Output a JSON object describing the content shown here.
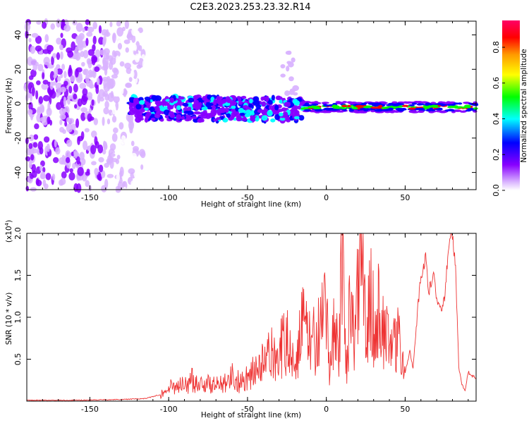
{
  "title": "C2E3.2023.253.23.32.R14",
  "colors": {
    "snr_line": "#ee3333",
    "axis": "#000000",
    "spectrum_scale": [
      "#ffffff",
      "#d9b3ff",
      "#8800ff",
      "#0000ff",
      "#00ffff",
      "#00ff00",
      "#ffff00",
      "#ff9900",
      "#ff0000",
      "#ff0066"
    ]
  },
  "chart_data": [
    {
      "type": "heatmap",
      "title": "C2E3.2023.253.23.32.R14",
      "xlabel": "Height of straight line (km)",
      "ylabel": "Frequency (Hz)",
      "xlim": [
        -190,
        95
      ],
      "ylim": [
        -50,
        48
      ],
      "x_ticks": [
        -150,
        -100,
        -50,
        0,
        50
      ],
      "y_ticks": [
        -40,
        -20,
        0,
        20,
        40
      ],
      "colorbar": {
        "label": "Normalized spectral amplitude",
        "range": [
          0.0,
          0.95
        ],
        "ticks": [
          0.0,
          0.2,
          0.4,
          0.6,
          0.8
        ]
      },
      "features": [
        {
          "description_region": "scattered noise",
          "x_range": [
            -190,
            -110
          ],
          "y_range": [
            -50,
            48
          ],
          "amplitude": 0.1
        },
        {
          "description_region": "broadband band",
          "x_range": [
            -125,
            -15
          ],
          "y_center": -3,
          "y_halfwidth": 7,
          "amplitude": 0.4
        },
        {
          "description_region": "narrow carrier",
          "x_range": [
            -15,
            95
          ],
          "y_center": -2,
          "y_halfwidth": 3,
          "amplitude": 0.85
        },
        {
          "description_region": "faint spur",
          "x_range": [
            -28,
            -18
          ],
          "y_range": [
            5,
            32
          ],
          "amplitude": 0.2
        }
      ]
    },
    {
      "type": "line",
      "xlabel": "Height of straight line (km)",
      "ylabel": "SNR (10 * v/v)",
      "y_multiplier_label": "(x10",
      "y_multiplier_exp": "4",
      "y_multiplier_close": ")",
      "xlim": [
        -190,
        95
      ],
      "ylim": [
        0,
        2.0
      ],
      "x_ticks": [
        -150,
        -100,
        -50,
        0,
        50
      ],
      "y_ticks": [
        "0.5",
        "1.0",
        "1.5",
        "2.0"
      ],
      "y_tick_values": [
        0.5,
        1.0,
        1.5,
        2.0
      ],
      "series": [
        {
          "x": [
            -190,
            -160,
            -130,
            -115,
            -105,
            -100,
            -95,
            -90,
            -85,
            -80,
            -75,
            -70,
            -65,
            -60,
            -55,
            -50,
            -45,
            -40,
            -35,
            -30,
            -25,
            -20,
            -15,
            -10,
            -5,
            0,
            2,
            5,
            8,
            10,
            13,
            15,
            18,
            20,
            23,
            25,
            28,
            30,
            33,
            35,
            38,
            40,
            43,
            45,
            48,
            50,
            53,
            55,
            58,
            60,
            63,
            65,
            68,
            70,
            73,
            75,
            78,
            80,
            82,
            84,
            86,
            88,
            90,
            92,
            95
          ],
          "y": [
            0.01,
            0.01,
            0.02,
            0.03,
            0.08,
            0.15,
            0.2,
            0.18,
            0.25,
            0.22,
            0.2,
            0.18,
            0.25,
            0.3,
            0.22,
            0.3,
            0.35,
            0.45,
            0.55,
            0.6,
            0.7,
            0.5,
            0.9,
            0.7,
            0.8,
            1.0,
            0.3,
            1.1,
            0.5,
            1.65,
            0.4,
            1.3,
            0.6,
            1.25,
            1.72,
            0.8,
            1.45,
            0.9,
            1.2,
            0.7,
            1.05,
            0.55,
            0.65,
            0.9,
            0.45,
            0.35,
            0.6,
            0.4,
            1.1,
            1.5,
            1.7,
            1.3,
            1.55,
            1.2,
            1.1,
            1.25,
            1.95,
            1.98,
            1.6,
            0.4,
            0.2,
            0.12,
            0.35,
            0.3,
            0.28
          ]
        }
      ]
    }
  ]
}
